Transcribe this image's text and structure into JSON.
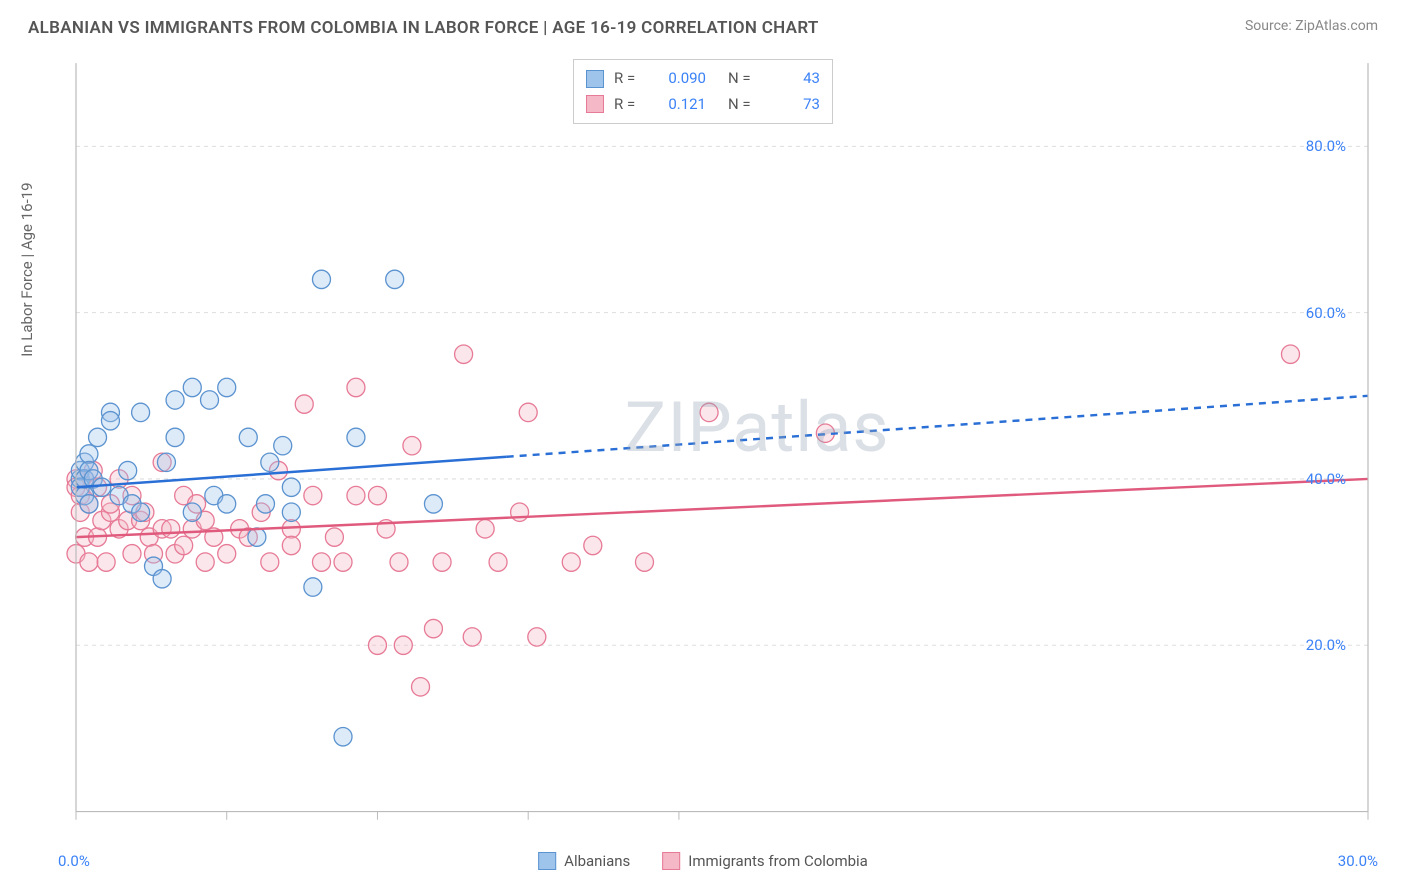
{
  "title": "ALBANIAN VS IMMIGRANTS FROM COLOMBIA IN LABOR FORCE | AGE 16-19 CORRELATION CHART",
  "source": "Source: ZipAtlas.com",
  "ylabel": "In Labor Force | Age 16-19",
  "watermark": "ZIPatlas",
  "chart": {
    "type": "scatter",
    "xlim": [
      0,
      30
    ],
    "ylim": [
      0,
      90
    ],
    "xticks": [
      0,
      3.5,
      7,
      10.5,
      14,
      30
    ],
    "yticks_grid": [
      20,
      40,
      60,
      80
    ],
    "ytick_labels": [
      "20.0%",
      "40.0%",
      "60.0%",
      "80.0%"
    ],
    "x_left_label": "0.0%",
    "x_right_label": "30.0%",
    "background_color": "#ffffff",
    "grid_color": "#dddddd",
    "axis_color": "#bbbbbb",
    "marker_radius": 9,
    "marker_stroke_width": 1.3,
    "marker_fill_opacity": 0.35,
    "series": [
      {
        "name": "Albanians",
        "color_fill": "#9fc4ec",
        "color_stroke": "#5b93d0",
        "R": "0.090",
        "N": "43",
        "trend": {
          "y_at_x0": 39,
          "y_at_x30": 50,
          "solid_until_x": 10,
          "line_color": "#2a6fd6",
          "line_width": 2.4
        },
        "points": [
          [
            0.1,
            40
          ],
          [
            0.1,
            41
          ],
          [
            0.1,
            39
          ],
          [
            0.2,
            38
          ],
          [
            0.2,
            42
          ],
          [
            0.2,
            40
          ],
          [
            0.3,
            43
          ],
          [
            0.3,
            37
          ],
          [
            0.3,
            41
          ],
          [
            0.4,
            40
          ],
          [
            0.5,
            45
          ],
          [
            0.6,
            39
          ],
          [
            0.8,
            48
          ],
          [
            0.8,
            47
          ],
          [
            1.0,
            38
          ],
          [
            1.2,
            41
          ],
          [
            1.3,
            37
          ],
          [
            1.5,
            48
          ],
          [
            1.5,
            36
          ],
          [
            1.8,
            29.5
          ],
          [
            2.0,
            28
          ],
          [
            2.1,
            42
          ],
          [
            2.3,
            49.5
          ],
          [
            2.3,
            45
          ],
          [
            2.7,
            36
          ],
          [
            2.7,
            51
          ],
          [
            3.1,
            49.5
          ],
          [
            3.2,
            38
          ],
          [
            3.5,
            51
          ],
          [
            3.5,
            37
          ],
          [
            4.0,
            45
          ],
          [
            4.2,
            33
          ],
          [
            4.4,
            37
          ],
          [
            4.5,
            42
          ],
          [
            4.8,
            44
          ],
          [
            5.0,
            39
          ],
          [
            5.0,
            36
          ],
          [
            5.5,
            27
          ],
          [
            5.7,
            64
          ],
          [
            6.2,
            9
          ],
          [
            6.5,
            45
          ],
          [
            7.4,
            64
          ],
          [
            8.3,
            37
          ]
        ]
      },
      {
        "name": "Immigrants from Colombia",
        "color_fill": "#f4b8c6",
        "color_stroke": "#e77a96",
        "R": "0.121",
        "N": "73",
        "trend": {
          "y_at_x0": 33,
          "y_at_x30": 40,
          "solid_until_x": 30,
          "line_color": "#e05a7d",
          "line_width": 2.4
        },
        "points": [
          [
            0.0,
            40
          ],
          [
            0.0,
            39
          ],
          [
            0.0,
            31
          ],
          [
            0.1,
            38
          ],
          [
            0.1,
            36
          ],
          [
            0.2,
            33
          ],
          [
            0.2,
            40
          ],
          [
            0.3,
            37
          ],
          [
            0.3,
            30
          ],
          [
            0.4,
            41
          ],
          [
            0.5,
            33
          ],
          [
            0.5,
            39
          ],
          [
            0.6,
            35
          ],
          [
            0.7,
            30
          ],
          [
            0.8,
            36
          ],
          [
            0.8,
            37
          ],
          [
            1.0,
            34
          ],
          [
            1.0,
            40
          ],
          [
            1.2,
            35
          ],
          [
            1.3,
            31
          ],
          [
            1.3,
            38
          ],
          [
            1.5,
            35
          ],
          [
            1.6,
            36
          ],
          [
            1.7,
            33
          ],
          [
            1.8,
            31
          ],
          [
            2.0,
            34
          ],
          [
            2.0,
            42
          ],
          [
            2.2,
            34
          ],
          [
            2.3,
            31
          ],
          [
            2.5,
            38
          ],
          [
            2.5,
            32
          ],
          [
            2.7,
            34
          ],
          [
            2.8,
            37
          ],
          [
            3.0,
            30
          ],
          [
            3.0,
            35
          ],
          [
            3.2,
            33
          ],
          [
            3.5,
            31
          ],
          [
            3.8,
            34
          ],
          [
            4.0,
            33
          ],
          [
            4.3,
            36
          ],
          [
            4.5,
            30
          ],
          [
            4.7,
            41
          ],
          [
            5.0,
            34
          ],
          [
            5.0,
            32
          ],
          [
            5.3,
            49
          ],
          [
            5.5,
            38
          ],
          [
            5.7,
            30
          ],
          [
            6.0,
            33
          ],
          [
            6.2,
            30
          ],
          [
            6.5,
            51
          ],
          [
            6.5,
            38
          ],
          [
            7.0,
            20
          ],
          [
            7.0,
            38
          ],
          [
            7.2,
            34
          ],
          [
            7.5,
            30
          ],
          [
            7.6,
            20
          ],
          [
            7.8,
            44
          ],
          [
            8.0,
            15
          ],
          [
            8.3,
            22
          ],
          [
            8.5,
            30
          ],
          [
            9.0,
            55
          ],
          [
            9.2,
            21
          ],
          [
            9.5,
            34
          ],
          [
            9.8,
            30
          ],
          [
            10.3,
            36
          ],
          [
            10.5,
            48
          ],
          [
            10.7,
            21
          ],
          [
            11.5,
            30
          ],
          [
            12.0,
            32
          ],
          [
            13.2,
            30
          ],
          [
            14.7,
            48
          ],
          [
            17.4,
            45.5
          ],
          [
            28.2,
            55
          ]
        ]
      }
    ]
  },
  "legend_top": [
    {
      "series_index": 0
    },
    {
      "series_index": 1
    }
  ],
  "legend_bottom": [
    {
      "series_index": 0
    },
    {
      "series_index": 1
    }
  ]
}
